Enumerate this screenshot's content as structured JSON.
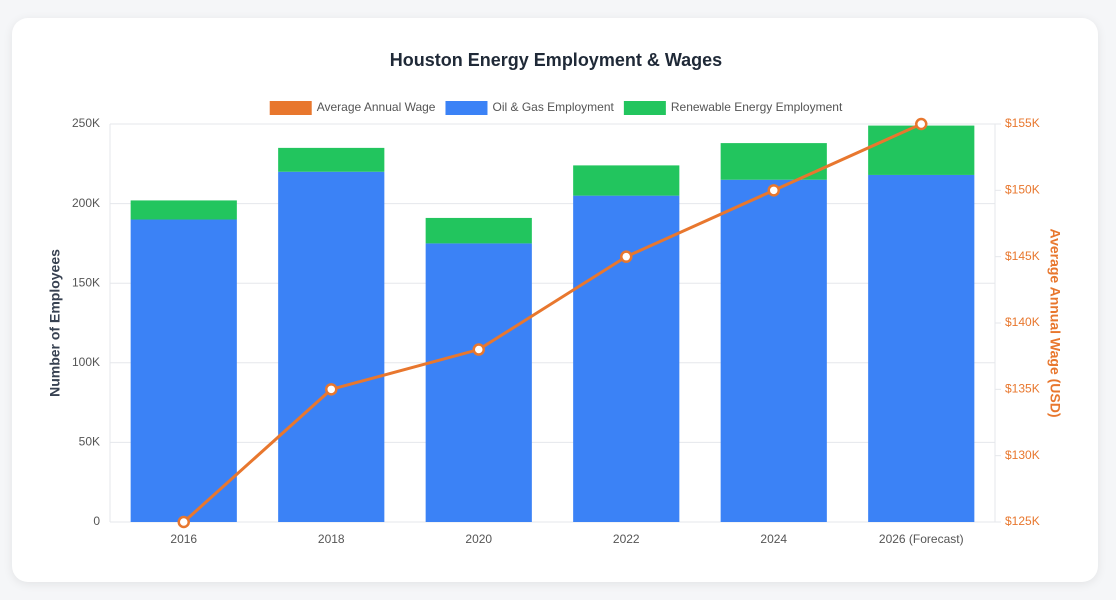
{
  "chart_data": {
    "type": "bar",
    "stacked": true,
    "title": "Houston Energy Employment & Wages",
    "y_label": "Number of Employees",
    "y2_label": "Average Annual Wage (USD)",
    "categories": [
      "2016",
      "2018",
      "2020",
      "2022",
      "2024",
      "2026 (Forecast)"
    ],
    "series": [
      {
        "name": "Average Annual Wage",
        "type": "line",
        "axis": "y2",
        "color": "#e8772e",
        "values": [
          125000,
          135000,
          138000,
          145000,
          150000,
          155000
        ]
      },
      {
        "name": "Oil & Gas Employment",
        "type": "bar",
        "color": "#3b82f6",
        "values": [
          190000,
          220000,
          175000,
          205000,
          215000,
          218000
        ]
      },
      {
        "name": "Renewable Energy Employment",
        "type": "bar",
        "color": "#22c55e",
        "values": [
          12000,
          15000,
          16000,
          19000,
          23000,
          31000
        ]
      }
    ],
    "ylim": [
      0,
      250000
    ],
    "yticks": [
      {
        "value": 0,
        "label": "0"
      },
      {
        "value": 50000,
        "label": "50K"
      },
      {
        "value": 100000,
        "label": "100K"
      },
      {
        "value": 150000,
        "label": "150K"
      },
      {
        "value": 200000,
        "label": "200K"
      },
      {
        "value": 250000,
        "label": "250K"
      }
    ],
    "y2lim": [
      125000,
      155000
    ],
    "y2ticks": [
      {
        "value": 125000,
        "label": "$125K"
      },
      {
        "value": 130000,
        "label": "$130K"
      },
      {
        "value": 135000,
        "label": "$135K"
      },
      {
        "value": 140000,
        "label": "$140K"
      },
      {
        "value": 145000,
        "label": "$145K"
      },
      {
        "value": 150000,
        "label": "$150K"
      },
      {
        "value": 155000,
        "label": "$155K"
      }
    ],
    "y2color": "#e8772e",
    "grid": true,
    "legend": "top"
  }
}
